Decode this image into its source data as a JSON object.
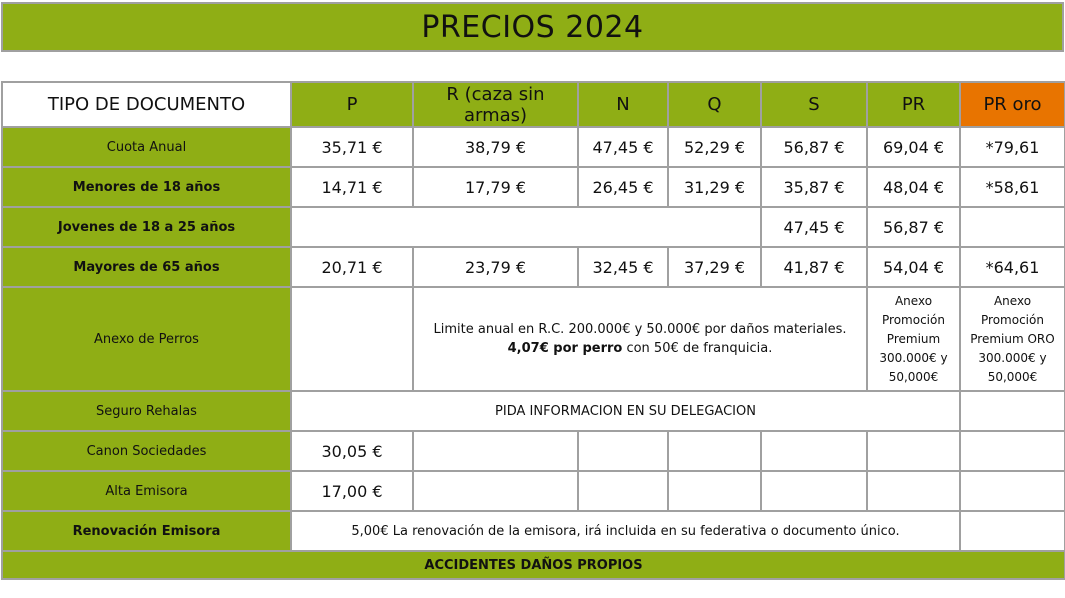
{
  "title": "PRECIOS 2024",
  "headers": [
    "TIPO DE DOCUMENTO",
    "P",
    "R (caza sin armas)",
    "N",
    "Q",
    "S",
    "PR",
    "PR oro"
  ],
  "rows": {
    "cuota": {
      "label": "Cuota Anual",
      "values": [
        "35,71 €",
        "38,79 €",
        "47,45 €",
        "52,29 €",
        "56,87 €",
        "69,04 €",
        "*79,61"
      ]
    },
    "menores": {
      "label": "Menores de 18 años",
      "values": [
        "14,71 €",
        "17,79 €",
        "26,45 €",
        "31,29 €",
        "35,87 €",
        "48,04 €",
        "*58,61"
      ]
    },
    "jovenes": {
      "label": "Jovenes de 18 a 25 años",
      "s": "47,45 €",
      "pr": "56,87 €"
    },
    "mayores": {
      "label": "Mayores de 65 años",
      "values": [
        "20,71 €",
        "23,79 €",
        "32,45 €",
        "37,29 €",
        "41,87 €",
        "54,04 €",
        "*64,61"
      ]
    },
    "anexo": {
      "label": "Anexo de Perros",
      "line1": "Limite anual en R.C. 200.000€ y 50.000€ por daños materiales.",
      "bold": "4,07€ por perro",
      "rest": " con 50€ de franquicia.",
      "pr": [
        "Anexo",
        "Promoción",
        "Premium",
        "300.000€ y",
        "50,000€"
      ],
      "pr_oro": [
        "Anexo",
        "Promoción",
        "Premium ORO",
        "300.000€ y",
        "50,000€"
      ]
    },
    "rehalas": {
      "label": "Seguro Rehalas",
      "text": "PIDA INFORMACION EN SU DELEGACION"
    },
    "canon": {
      "label": "Canon Sociedades",
      "p": "30,05 €"
    },
    "alta": {
      "label": "Alta Emisora",
      "p": "17,00 €"
    },
    "renovacion": {
      "label": "Renovación Emisora",
      "text": "5,00€ La renovación de la emisora, irá incluida en su federativa o documento único."
    },
    "accidentes": {
      "label": "ACCIDENTES DAÑOS PROPIOS"
    }
  },
  "colors": {
    "green": "#8fae15",
    "orange": "#e87400",
    "border": "#a0a0a0"
  }
}
